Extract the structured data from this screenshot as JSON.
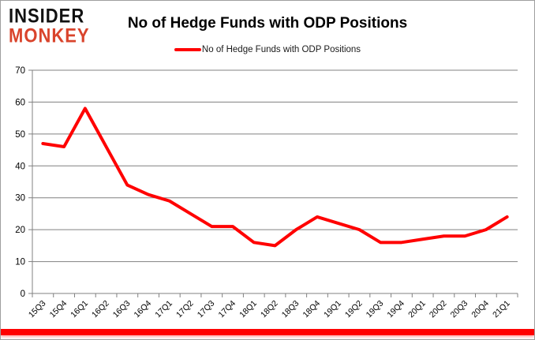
{
  "header": {
    "logo": {
      "line1": "INSIDER",
      "line2": "MONKEY"
    },
    "title": "No of Hedge Funds with ODP Positions",
    "legend_label": "No of Hedge Funds with ODP Positions"
  },
  "colors": {
    "line": "#ff0000",
    "grid": "#808080",
    "axis_text": "#000000",
    "logo_black": "#111111",
    "logo_red": "#d9442c",
    "bottom_stripe": "#ff0000"
  },
  "chart_data": {
    "type": "line",
    "title": "No of Hedge Funds with ODP Positions",
    "categories": [
      "15Q3",
      "15Q4",
      "16Q1",
      "16Q2",
      "16Q3",
      "16Q4",
      "17Q1",
      "17Q2",
      "17Q3",
      "17Q4",
      "18Q1",
      "18Q2",
      "18Q3",
      "18Q4",
      "19Q1",
      "19Q2",
      "19Q3",
      "19Q4",
      "20Q1",
      "20Q2",
      "20Q3",
      "20Q4",
      "21Q1"
    ],
    "series": [
      {
        "name": "No of Hedge Funds with ODP Positions",
        "values": [
          47,
          46,
          58,
          46,
          34,
          31,
          29,
          25,
          21,
          21,
          16,
          15,
          20,
          24,
          22,
          20,
          16,
          16,
          17,
          18,
          18,
          20,
          24
        ]
      }
    ],
    "xlabel": "",
    "ylabel": "",
    "ylim": [
      0,
      70
    ],
    "ytick_step": 10,
    "grid": "horizontal",
    "legend_position": "top",
    "x_label_rotation": -45
  }
}
